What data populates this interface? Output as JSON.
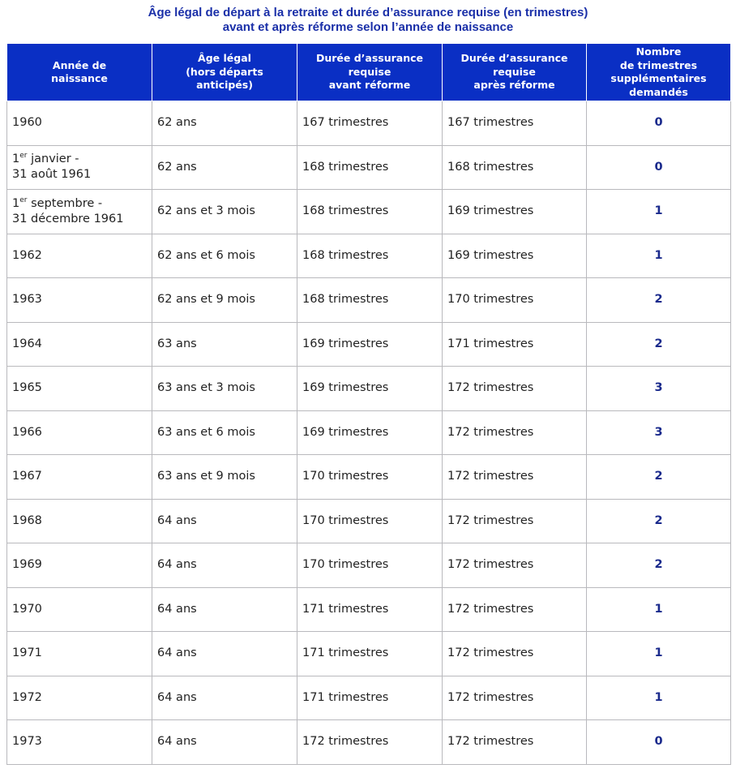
{
  "title": [
    "Âge légal de départ à la retraite et durée d’assurance requise (en trimestres)",
    "avant et après réforme selon l’année de naissance"
  ],
  "table": {
    "header": [
      [
        "Année de",
        "naissance"
      ],
      [
        "Âge légal",
        "(hors départs",
        "anticipés)"
      ],
      [
        "Durée d’assurance",
        "requise",
        "avant réforme"
      ],
      [
        "Durée d’assurance",
        "requise",
        "après réforme"
      ],
      [
        "Nombre",
        "de trimestres",
        "supplémentaires",
        "demandés"
      ]
    ],
    "rows": [
      [
        "1960",
        "62 ans",
        "167 trimestres",
        "167 trimestres",
        0
      ],
      [
        {
          "day": "1",
          "sup": "er",
          "line1": " janvier -",
          "line2": "31 août 1961"
        },
        "62 ans",
        "168 trimestres",
        "168 trimestres",
        0
      ],
      [
        {
          "day": "1",
          "sup": "er",
          "line1": " septembre -",
          "line2": "31 décembre 1961"
        },
        "62 ans et 3 mois",
        "168 trimestres",
        "169 trimestres",
        1
      ],
      [
        "1962",
        "62 ans et 6 mois",
        "168 trimestres",
        "169 trimestres",
        1
      ],
      [
        "1963",
        "62 ans et 9 mois",
        "168 trimestres",
        "170 trimestres",
        2
      ],
      [
        "1964",
        "63 ans",
        "169 trimestres",
        "171 trimestres",
        2
      ],
      [
        "1965",
        "63 ans et 3 mois",
        "169 trimestres",
        "172 trimestres",
        3
      ],
      [
        "1966",
        "63 ans et 6 mois",
        "169 trimestres",
        "172 trimestres",
        3
      ],
      [
        "1967",
        "63 ans et 9 mois",
        "170 trimestres",
        "172 trimestres",
        2
      ],
      [
        "1968",
        "64 ans",
        "170 trimestres",
        "172 trimestres",
        2
      ],
      [
        "1969",
        "64 ans",
        "170 trimestres",
        "172 trimestres",
        2
      ],
      [
        "1970",
        "64 ans",
        "171 trimestres",
        "172 trimestres",
        1
      ],
      [
        "1971",
        "64 ans",
        "171 trimestres",
        "172 trimestres",
        1
      ],
      [
        "1972",
        "64 ans",
        "171 trimestres",
        "172 trimestres",
        1
      ],
      [
        "1973",
        "64 ans",
        "172 trimestres",
        "172 trimestres",
        0
      ]
    ]
  }
}
